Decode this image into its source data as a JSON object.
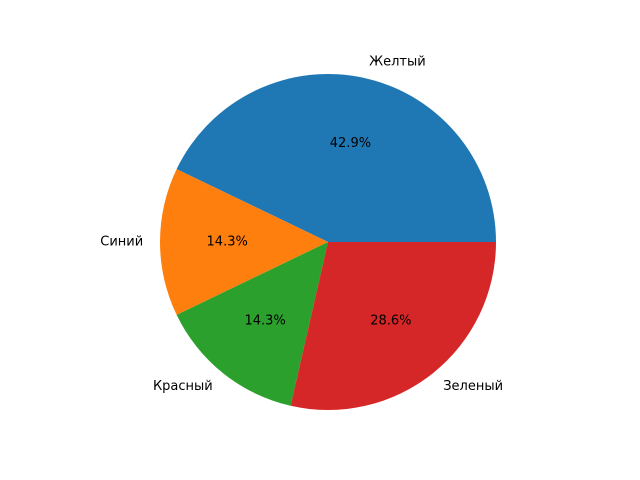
{
  "chart_data": {
    "type": "pie",
    "categories": [
      "Желтый",
      "Синий",
      "Красный",
      "Зеленый"
    ],
    "values": [
      3,
      1,
      1,
      2
    ],
    "percent_labels": [
      "42.9%",
      "14.3%",
      "14.3%",
      "28.6%"
    ],
    "colors": [
      "#1f77b4",
      "#ff7f0e",
      "#2ca02c",
      "#d62728"
    ],
    "start_angle_deg": 0,
    "direction": "counterclockwise",
    "title": "",
    "legend": "none"
  }
}
